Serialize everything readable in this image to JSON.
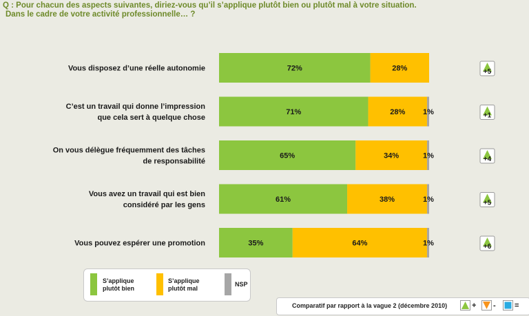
{
  "question": {
    "line1": "Q : Pour chacun des aspects suivantes, diriez-vous qu’il s’applique plutôt bien ou plutôt mal à votre situation.",
    "line2": "Dans le cadre de votre activité professionnelle… ?"
  },
  "colors": {
    "bien": "#8cc63f",
    "mal": "#ffc000",
    "nsp": "#a6a6a6",
    "up": "#8cc63f",
    "down": "#f7941d",
    "equal": "#29abe2"
  },
  "chart_data": {
    "type": "bar",
    "orientation": "horizontal",
    "stacked": true,
    "categories": [
      [
        "Vous disposez d’une réelle autonomie"
      ],
      [
        "C’est un travail qui donne l’impression",
        "que cela sert à quelque chose"
      ],
      [
        "On vous délègue fréquemment des tâches",
        "de responsabilité"
      ],
      [
        "Vous avez un travail qui est bien",
        "considéré par les gens"
      ],
      [
        "Vous pouvez espérer une promotion"
      ]
    ],
    "series": [
      {
        "name": "S’applique plutôt bien",
        "key": "bien",
        "values": [
          72,
          71,
          65,
          61,
          35
        ],
        "labels": [
          "72%",
          "71%",
          "65%",
          "61%",
          "35%"
        ]
      },
      {
        "name": "S’applique plutôt mal",
        "key": "mal",
        "values": [
          28,
          28,
          34,
          38,
          64
        ],
        "labels": [
          "28%",
          "28%",
          "34%",
          "38%",
          "64%"
        ]
      },
      {
        "name": "NSP",
        "key": "nsp",
        "values": [
          0,
          1,
          1,
          1,
          1
        ],
        "labels": [
          "",
          "1%",
          "1%",
          "1%",
          "1%"
        ]
      }
    ],
    "evolution": [
      "+5",
      "+1",
      "+4",
      "+5",
      "+6"
    ],
    "legend": [
      {
        "label": [
          "S’applique",
          "plutôt bien"
        ],
        "key": "bien"
      },
      {
        "label": [
          "S’applique",
          "plutôt mal"
        ],
        "key": "mal"
      },
      {
        "label": [
          "NSP"
        ],
        "key": "nsp"
      }
    ],
    "xlim": [
      0,
      100
    ],
    "comparison": {
      "text": "Comparatif par rapport à la vague 2 (décembre 2010)",
      "symbols": [
        "+",
        "-",
        "="
      ]
    }
  }
}
